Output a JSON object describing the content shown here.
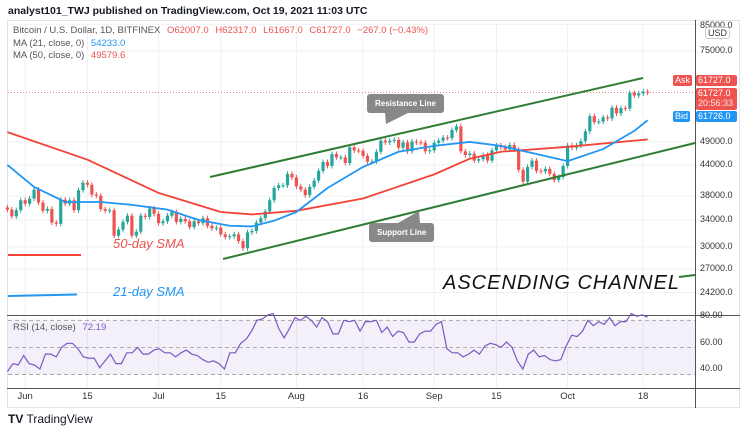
{
  "header": {
    "published": "analyst101_TWJ published on TradingView.com, Oct 19, 2021 11:03 UTC"
  },
  "legend": {
    "symbol": "Bitcoin / U.S. Dollar, 1D, BITFINEX",
    "open": "O62007.0",
    "high": "H62317.0",
    "low": "L61667.0",
    "close": "C61727.0",
    "change": "−267.0 (−0.43%)",
    "ma21_label": "MA (21, close, 0)",
    "ma21_value": "54233.0",
    "ma50_label": "MA (50, close, 0)",
    "ma50_value": "49579.6",
    "rsi_label": "RSI (14, close)",
    "rsi_value": "72.19"
  },
  "price_axis": {
    "currency": "USD",
    "ticks": [
      "85000.0",
      "75000.0",
      "49000.0",
      "44000.0",
      "38000.0",
      "34000.0",
      "30000.0",
      "27000.0",
      "24200.0"
    ],
    "ask_label": "Ask",
    "ask_value": "61727.0",
    "last_value": "61727.0",
    "countdown": "20:56:33",
    "bid_label": "Bid",
    "bid_value": "61726.0"
  },
  "rsi_axis": {
    "ticks": [
      "80.00",
      "60.00",
      "40.00"
    ]
  },
  "time_axis": {
    "ticks": [
      "Jun",
      "15",
      "Jul",
      "15",
      "Aug",
      "16",
      "Sep",
      "15",
      "Oct",
      "18"
    ]
  },
  "annotations": {
    "sma50": "50-day SMA",
    "sma21": "21-day SMA",
    "resistance": "Resistance Line",
    "support": "Support Line",
    "title": "ASCENDING  CHANNEL"
  },
  "branding": {
    "name": "TradingView"
  },
  "colors": {
    "up": "#26a69a",
    "down": "#ef5350",
    "ma21": "#2196f3",
    "ma50": "#f44336",
    "trend": "#2e7d32",
    "rsi": "#7e57c2"
  },
  "chart_data": {
    "type": "candlestick",
    "scale": "log",
    "ylim": [
      21800,
      85900
    ],
    "x_range": [
      "2021-05-28",
      "2021-10-19"
    ],
    "grid": true,
    "close": [
      35700,
      34600,
      35600,
      37300,
      36700,
      37600,
      39200,
      36900,
      35500,
      35800,
      33600,
      33400,
      37400,
      36700,
      37300,
      35600,
      39100,
      40500,
      40100,
      38300,
      38100,
      35800,
      35500,
      35600,
      31600,
      32500,
      33700,
      34700,
      31600,
      32200,
      34700,
      34500,
      35900,
      35000,
      33500,
      33800,
      34700,
      35300,
      33700,
      34200,
      33800,
      32900,
      33800,
      33500,
      34300,
      33100,
      32700,
      32800,
      31800,
      31400,
      31500,
      31800,
      30800,
      29800,
      32100,
      32300,
      33600,
      34300,
      35400,
      37300,
      39500,
      40000,
      40000,
      42200,
      41500,
      39800,
      39200,
      38200,
      39700,
      40900,
      42800,
      44600,
      43800,
      46300,
      45600,
      45600,
      44400,
      47800,
      47100,
      47000,
      45900,
      44700,
      44700,
      46800,
      49300,
      48900,
      49300,
      49500,
      47700,
      48900,
      46900,
      49100,
      48900,
      48800,
      46900,
      47100,
      48800,
      49300,
      50000,
      49900,
      51800,
      52700,
      46900,
      46100,
      46400,
      44900,
      45200,
      46100,
      44900,
      47100,
      48200,
      47800,
      47300,
      48300,
      47300,
      43000,
      40700,
      43600,
      44900,
      42800,
      42700,
      43200,
      42200,
      41000,
      41600,
      43800,
      48200,
      47700,
      48200,
      49200,
      51500,
      55300,
      53800,
      53900,
      55000,
      54700,
      57500,
      56000,
      57400,
      57300,
      61700,
      60900,
      61500,
      62000,
      61727
    ],
    "ma21": [
      [
        "2021-05-28",
        44000
      ],
      [
        "2021-06-03",
        39700
      ],
      [
        "2021-06-10",
        37000
      ],
      [
        "2021-06-18",
        37000
      ],
      [
        "2021-06-25",
        36500
      ],
      [
        "2021-07-03",
        35700
      ],
      [
        "2021-07-10",
        34000
      ],
      [
        "2021-07-17",
        33100
      ],
      [
        "2021-07-22",
        33000
      ],
      [
        "2021-07-27",
        33900
      ],
      [
        "2021-08-01",
        35300
      ],
      [
        "2021-08-08",
        39500
      ],
      [
        "2021-08-16",
        43600
      ],
      [
        "2021-08-24",
        46800
      ],
      [
        "2021-09-01",
        48100
      ],
      [
        "2021-09-09",
        49000
      ],
      [
        "2021-09-16",
        48100
      ],
      [
        "2021-09-24",
        46300
      ],
      [
        "2021-10-01",
        44800
      ],
      [
        "2021-10-09",
        47400
      ],
      [
        "2021-10-16",
        51600
      ],
      [
        "2021-10-19",
        54233
      ]
    ],
    "ma50": [
      [
        "2021-05-28",
        51300
      ],
      [
        "2021-06-15",
        45100
      ],
      [
        "2021-07-01",
        38600
      ],
      [
        "2021-07-15",
        35300
      ],
      [
        "2021-07-22",
        34900
      ],
      [
        "2021-08-01",
        35500
      ],
      [
        "2021-08-16",
        37600
      ],
      [
        "2021-09-01",
        42100
      ],
      [
        "2021-09-09",
        45300
      ],
      [
        "2021-09-16",
        46800
      ],
      [
        "2021-10-01",
        47900
      ],
      [
        "2021-10-19",
        49580
      ]
    ],
    "rsi": {
      "ylim": [
        20,
        85
      ],
      "bands": [
        30,
        50,
        70
      ],
      "values": [
        32,
        38,
        37,
        44,
        38,
        37,
        34,
        45,
        45,
        43,
        50,
        53,
        53,
        49,
        43,
        42,
        42,
        35,
        40,
        45,
        38,
        38,
        46,
        46,
        50,
        45,
        45,
        48,
        49,
        46,
        46,
        43,
        46,
        48,
        45,
        44,
        41,
        39,
        40,
        38,
        34,
        46,
        46,
        53,
        56,
        62,
        70,
        71,
        74,
        75,
        64,
        57,
        64,
        72,
        70,
        73,
        70,
        65,
        72,
        69,
        60,
        60,
        70,
        69,
        70,
        62,
        69,
        69,
        70,
        61,
        65,
        58,
        62,
        61,
        54,
        54,
        60,
        62,
        62,
        67,
        69,
        49,
        46,
        46,
        43,
        45,
        48,
        45,
        51,
        53,
        52,
        50,
        54,
        50,
        40,
        34,
        45,
        48,
        43,
        44,
        41,
        40,
        41,
        51,
        59,
        58,
        62,
        70,
        66,
        69,
        67,
        72,
        66,
        69,
        69,
        75,
        73,
        74,
        72.19
      ]
    }
  }
}
